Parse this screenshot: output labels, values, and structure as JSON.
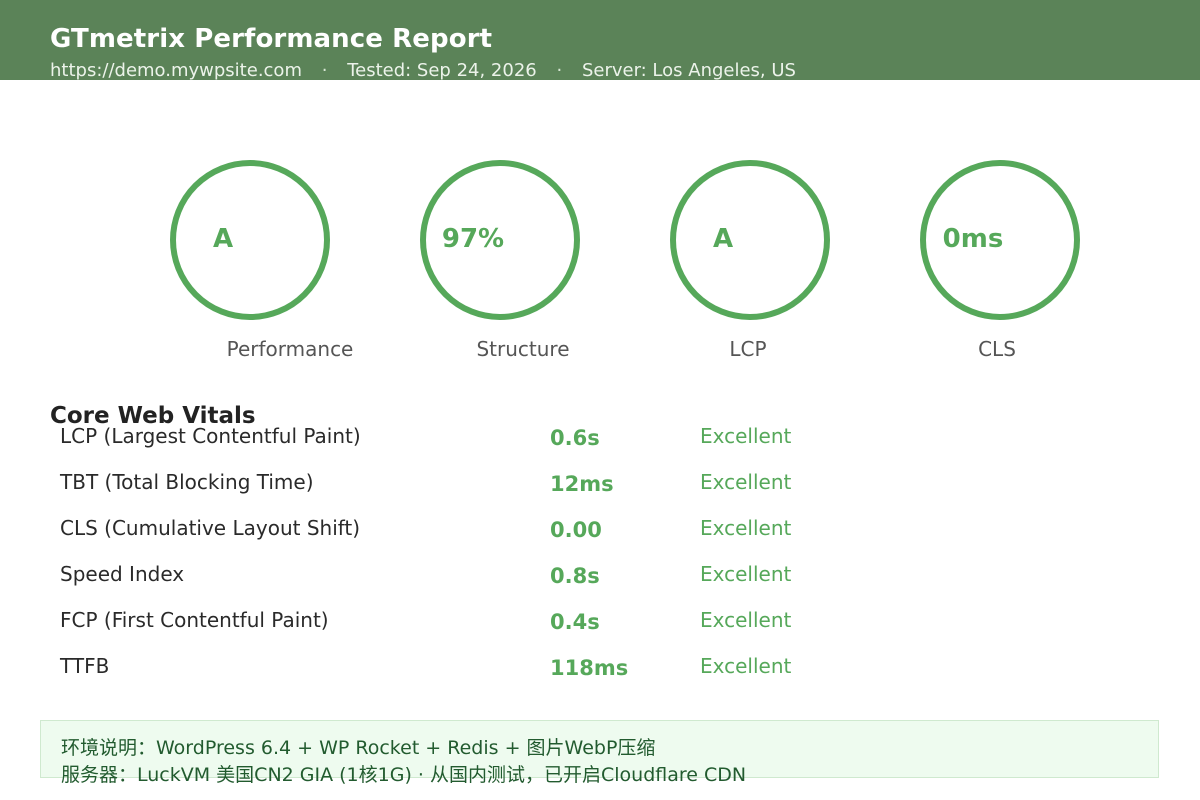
{
  "header": {
    "title": "GTmetrix Performance Report",
    "url": "https://demo.mywpsite.com",
    "tested": "Tested: Sep 24, 2026",
    "server": "Server: Los Angeles, US",
    "separator": "·"
  },
  "scores": [
    {
      "value": "A",
      "label": "Performance"
    },
    {
      "value": "97%",
      "label": "Structure"
    },
    {
      "value": "A",
      "label": "LCP"
    },
    {
      "value": "0ms",
      "label": "CLS"
    }
  ],
  "core_web_vitals": {
    "title": "Core Web Vitals",
    "rows": [
      {
        "name": "LCP (Largest Contentful Paint)",
        "value": "0.6s",
        "rating": "Excellent"
      },
      {
        "name": "TBT (Total Blocking Time)",
        "value": "12ms",
        "rating": "Excellent"
      },
      {
        "name": "CLS (Cumulative Layout Shift)",
        "value": "0.00",
        "rating": "Excellent"
      },
      {
        "name": "Speed Index",
        "value": "0.8s",
        "rating": "Excellent"
      },
      {
        "name": "FCP (First Contentful Paint)",
        "value": "0.4s",
        "rating": "Excellent"
      },
      {
        "name": "TTFB",
        "value": "118ms",
        "rating": "Excellent"
      }
    ]
  },
  "note": {
    "line1": "环境说明：WordPress 6.4 + WP Rocket + Redis + 图片WebP压缩",
    "line2": "服务器：LuckVM 美国CN2 GIA (1核1G) · 从国内测试，已开启Cloudflare CDN"
  },
  "colors": {
    "header_bg": "#5b8358",
    "accent_green": "#56a85a",
    "note_bg": "#eefbef"
  }
}
